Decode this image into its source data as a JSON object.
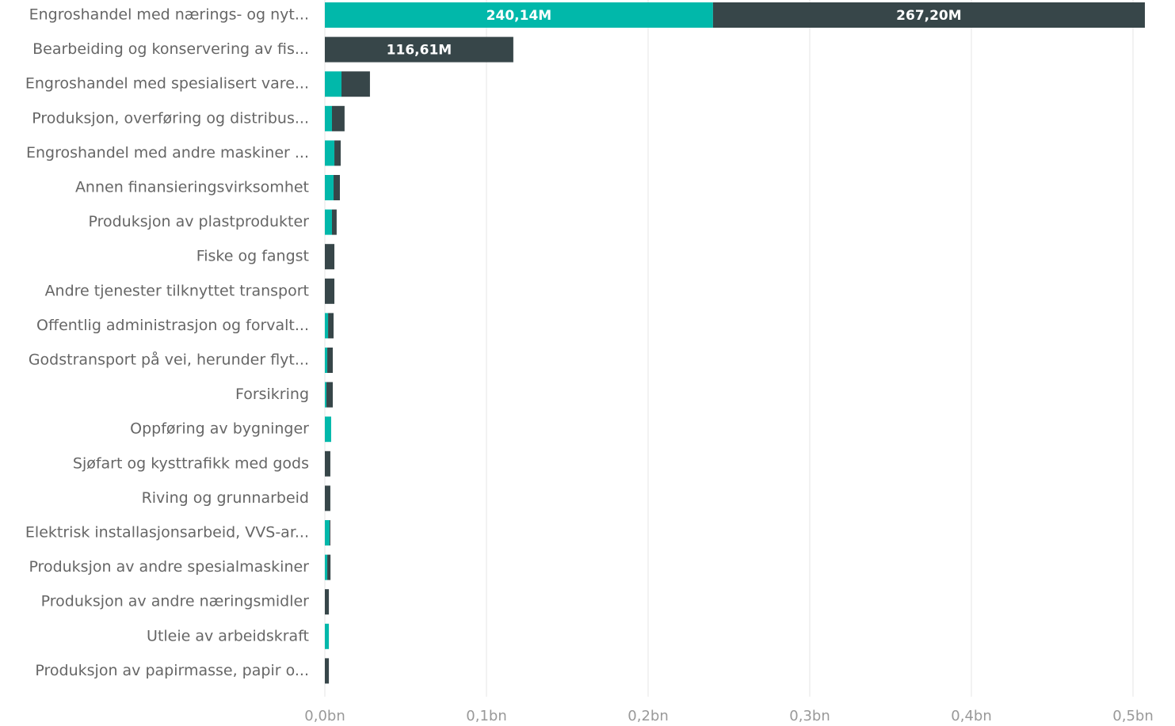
{
  "chart_data": {
    "type": "stacked-bar-horizontal",
    "categories": [
      "Engroshandel med nærings- og nyt...",
      "Bearbeiding og konservering av fis...",
      "Engroshandel med spesialisert vare...",
      "Produksjon, overføring og distribus...",
      "Engroshandel med andre maskiner ...",
      "Annen finansieringsvirksomhet",
      "Produksjon av plastprodukter",
      "Fiske og fangst",
      "Andre tjenester tilknyttet transport",
      "Offentlig administrasjon og forvalt...",
      "Godstransport på vei, herunder flyt...",
      "Forsikring",
      "Oppføring av bygninger",
      "Sjøfart og kysttrafikk med gods",
      "Riving og grunnarbeid",
      "Elektrisk installasjonsarbeid, VVS-ar...",
      "Produksjon av andre spesialmaskiner",
      "Produksjon av andre næringsmidler",
      "Utleie av arbeidskraft",
      "Produksjon av papirmasse, papir o..."
    ],
    "series": [
      {
        "color": "#01B8AA",
        "values": [
          0.24014,
          0,
          0.0103,
          0.0044,
          0.0059,
          0.0054,
          0.0044,
          0,
          0,
          0.002,
          0.0015,
          0.001,
          0.0039,
          0,
          0,
          0.0029,
          0.0015,
          0,
          0.0025,
          0
        ],
        "value_labels": [
          "240,14M",
          null,
          null,
          null,
          null,
          null,
          null,
          null,
          null,
          null,
          null,
          null,
          null,
          null,
          null,
          null,
          null,
          null,
          null,
          null
        ]
      },
      {
        "color": "#374649",
        "values": [
          0.2672,
          0.11661,
          0.0176,
          0.0078,
          0.0039,
          0.0039,
          0.0029,
          0.0059,
          0.0059,
          0.0034,
          0.0034,
          0.0039,
          0,
          0.0034,
          0.0034,
          0.0005,
          0.002,
          0.0025,
          0,
          0.0025
        ],
        "value_labels": [
          "267,20M",
          "116,61M",
          null,
          null,
          null,
          null,
          null,
          null,
          null,
          null,
          null,
          null,
          null,
          null,
          null,
          null,
          null,
          null,
          null,
          null
        ]
      }
    ],
    "xlim": [
      0,
      0.5
    ],
    "xticks": [
      {
        "value": 0,
        "label": "0,0bn"
      },
      {
        "value": 0.1,
        "label": "0,1bn"
      },
      {
        "value": 0.2,
        "label": "0,2bn"
      },
      {
        "value": 0.3,
        "label": "0,3bn"
      },
      {
        "value": 0.4,
        "label": "0,4bn"
      },
      {
        "value": 0.5,
        "label": "0,5bn"
      }
    ],
    "grid": true
  }
}
